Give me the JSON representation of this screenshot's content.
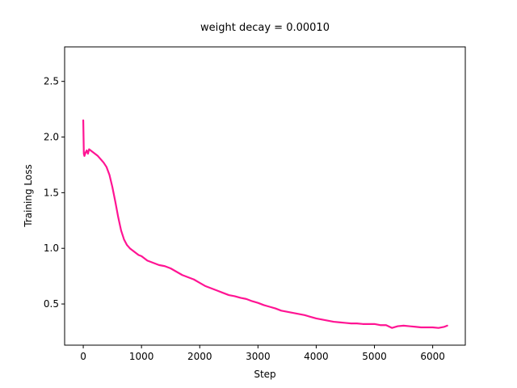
{
  "chart_data": {
    "type": "line",
    "title": "weight decay = 0.00010",
    "xlabel": "Step",
    "ylabel": "Training Loss",
    "xlim": [
      -320,
      6560
    ],
    "ylim": [
      0.13,
      2.81
    ],
    "xticks": [
      0,
      1000,
      2000,
      3000,
      4000,
      5000,
      6000
    ],
    "yticks": [
      0.5,
      1.0,
      1.5,
      2.0,
      2.5
    ],
    "ytick_labels": [
      "0.5",
      "1.0",
      "1.5",
      "2.0",
      "2.5"
    ],
    "grid": false,
    "series": [
      {
        "color": "#ff1493",
        "x": [
          0,
          10,
          20,
          40,
          60,
          80,
          100,
          150,
          200,
          250,
          300,
          350,
          400,
          450,
          500,
          550,
          600,
          650,
          700,
          750,
          800,
          850,
          900,
          950,
          1000,
          1100,
          1200,
          1300,
          1400,
          1500,
          1600,
          1700,
          1800,
          1900,
          2000,
          2100,
          2200,
          2300,
          2400,
          2500,
          2600,
          2700,
          2800,
          2900,
          3000,
          3100,
          3200,
          3300,
          3400,
          3500,
          3600,
          3700,
          3800,
          3900,
          4000,
          4100,
          4200,
          4300,
          4400,
          4500,
          4600,
          4700,
          4800,
          4900,
          5000,
          5100,
          5200,
          5300,
          5400,
          5500,
          5600,
          5700,
          5800,
          5900,
          6000,
          6100,
          6200,
          6250
        ],
        "y": [
          2.15,
          1.85,
          1.83,
          1.86,
          1.88,
          1.85,
          1.89,
          1.87,
          1.85,
          1.83,
          1.8,
          1.77,
          1.73,
          1.66,
          1.55,
          1.42,
          1.28,
          1.16,
          1.08,
          1.03,
          1.0,
          0.98,
          0.96,
          0.94,
          0.93,
          0.89,
          0.87,
          0.85,
          0.84,
          0.82,
          0.79,
          0.76,
          0.74,
          0.72,
          0.69,
          0.66,
          0.64,
          0.62,
          0.6,
          0.58,
          0.57,
          0.555,
          0.545,
          0.525,
          0.51,
          0.49,
          0.475,
          0.46,
          0.44,
          0.43,
          0.42,
          0.41,
          0.4,
          0.385,
          0.37,
          0.36,
          0.35,
          0.34,
          0.335,
          0.33,
          0.325,
          0.325,
          0.32,
          0.32,
          0.32,
          0.31,
          0.31,
          0.285,
          0.3,
          0.305,
          0.3,
          0.295,
          0.29,
          0.29,
          0.29,
          0.285,
          0.295,
          0.305
        ]
      }
    ]
  }
}
